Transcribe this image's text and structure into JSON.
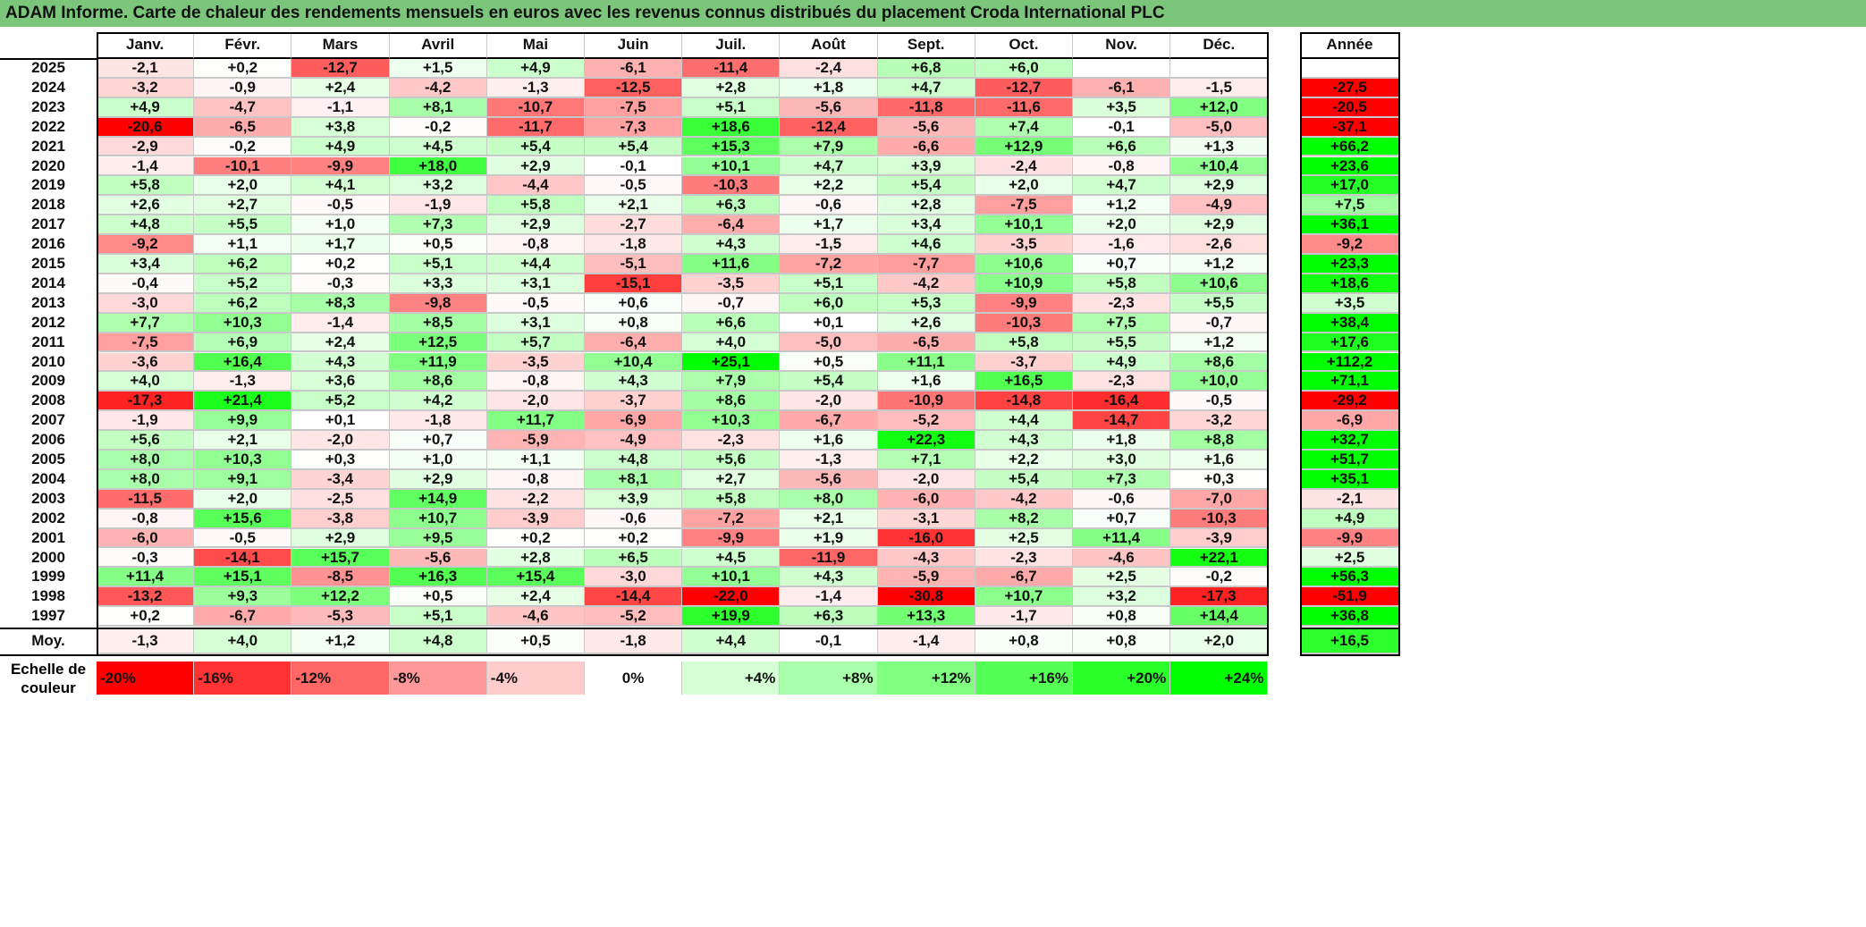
{
  "title": "ADAM Informe. Carte de chaleur des rendements mensuels en euros avec les revenus connus distribués du placement Croda International PLC",
  "chart_data": {
    "type": "heatmap",
    "title": "ADAM Informe. Carte de chaleur des rendements mensuels en euros avec les revenus connus distribués du placement Croda International PLC",
    "columns": [
      "Janv.",
      "Févr.",
      "Mars",
      "Avril",
      "Mai",
      "Juin",
      "Juil.",
      "Août",
      "Sept.",
      "Oct.",
      "Nov.",
      "Déc."
    ],
    "year_header": "Année",
    "rows": [
      {
        "year": "2025",
        "values": [
          "-2,1",
          "+0,2",
          "-12,7",
          "+1,5",
          "+4,9",
          "-6,1",
          "-11,4",
          "-2,4",
          "+6,8",
          "+6,0",
          "",
          ""
        ],
        "annual": ""
      },
      {
        "year": "2024",
        "values": [
          "-3,2",
          "-0,9",
          "+2,4",
          "-4,2",
          "-1,3",
          "-12,5",
          "+2,8",
          "+1,8",
          "+4,7",
          "-12,7",
          "-6,1",
          "-1,5"
        ],
        "annual": "-27,5"
      },
      {
        "year": "2023",
        "values": [
          "+4,9",
          "-4,7",
          "-1,1",
          "+8,1",
          "-10,7",
          "-7,5",
          "+5,1",
          "-5,6",
          "-11,8",
          "-11,6",
          "+3,5",
          "+12,0"
        ],
        "annual": "-20,5"
      },
      {
        "year": "2022",
        "values": [
          "-20,6",
          "-6,5",
          "+3,8",
          "-0,2",
          "-11,7",
          "-7,3",
          "+18,6",
          "-12,4",
          "-5,6",
          "+7,4",
          "-0,1",
          "-5,0"
        ],
        "annual": "-37,1"
      },
      {
        "year": "2021",
        "values": [
          "-2,9",
          "-0,2",
          "+4,9",
          "+4,5",
          "+5,4",
          "+5,4",
          "+15,3",
          "+7,9",
          "-6,6",
          "+12,9",
          "+6,6",
          "+1,3"
        ],
        "annual": "+66,2"
      },
      {
        "year": "2020",
        "values": [
          "-1,4",
          "-10,1",
          "-9,9",
          "+18,0",
          "+2,9",
          "-0,1",
          "+10,1",
          "+4,7",
          "+3,9",
          "-2,4",
          "-0,8",
          "+10,4"
        ],
        "annual": "+23,6"
      },
      {
        "year": "2019",
        "values": [
          "+5,8",
          "+2,0",
          "+4,1",
          "+3,2",
          "-4,4",
          "-0,5",
          "-10,3",
          "+2,2",
          "+5,4",
          "+2,0",
          "+4,7",
          "+2,9"
        ],
        "annual": "+17,0"
      },
      {
        "year": "2018",
        "values": [
          "+2,6",
          "+2,7",
          "-0,5",
          "-1,9",
          "+5,8",
          "+2,1",
          "+6,3",
          "-0,6",
          "+2,8",
          "-7,5",
          "+1,2",
          "-4,9"
        ],
        "annual": "+7,5"
      },
      {
        "year": "2017",
        "values": [
          "+4,8",
          "+5,5",
          "+1,0",
          "+7,3",
          "+2,9",
          "-2,7",
          "-6,4",
          "+1,7",
          "+3,4",
          "+10,1",
          "+2,0",
          "+2,9"
        ],
        "annual": "+36,1"
      },
      {
        "year": "2016",
        "values": [
          "-9,2",
          "+1,1",
          "+1,7",
          "+0,5",
          "-0,8",
          "-1,8",
          "+4,3",
          "-1,5",
          "+4,6",
          "-3,5",
          "-1,6",
          "-2,6"
        ],
        "annual": "-9,2"
      },
      {
        "year": "2015",
        "values": [
          "+3,4",
          "+6,2",
          "+0,2",
          "+5,1",
          "+4,4",
          "-5,1",
          "+11,6",
          "-7,2",
          "-7,7",
          "+10,6",
          "+0,7",
          "+1,2"
        ],
        "annual": "+23,3"
      },
      {
        "year": "2014",
        "values": [
          "-0,4",
          "+5,2",
          "-0,3",
          "+3,3",
          "+3,1",
          "-15,1",
          "-3,5",
          "+5,1",
          "-4,2",
          "+10,9",
          "+5,8",
          "+10,6"
        ],
        "annual": "+18,6"
      },
      {
        "year": "2013",
        "values": [
          "-3,0",
          "+6,2",
          "+8,3",
          "-9,8",
          "-0,5",
          "+0,6",
          "-0,7",
          "+6,0",
          "+5,3",
          "-9,9",
          "-2,3",
          "+5,5"
        ],
        "annual": "+3,5"
      },
      {
        "year": "2012",
        "values": [
          "+7,7",
          "+10,3",
          "-1,4",
          "+8,5",
          "+3,1",
          "+0,8",
          "+6,6",
          "+0,1",
          "+2,6",
          "-10,3",
          "+7,5",
          "-0,7"
        ],
        "annual": "+38,4"
      },
      {
        "year": "2011",
        "values": [
          "-7,5",
          "+6,9",
          "+2,4",
          "+12,5",
          "+5,7",
          "-6,4",
          "+4,0",
          "-5,0",
          "-6,5",
          "+5,8",
          "+5,5",
          "+1,2"
        ],
        "annual": "+17,6"
      },
      {
        "year": "2010",
        "values": [
          "-3,6",
          "+16,4",
          "+4,3",
          "+11,9",
          "-3,5",
          "+10,4",
          "+25,1",
          "+0,5",
          "+11,1",
          "-3,7",
          "+4,9",
          "+8,6"
        ],
        "annual": "+112,2"
      },
      {
        "year": "2009",
        "values": [
          "+4,0",
          "-1,3",
          "+3,6",
          "+8,6",
          "-0,8",
          "+4,3",
          "+7,9",
          "+5,4",
          "+1,6",
          "+16,5",
          "-2,3",
          "+10,0"
        ],
        "annual": "+71,1"
      },
      {
        "year": "2008",
        "values": [
          "-17,3",
          "+21,4",
          "+5,2",
          "+4,2",
          "-2,0",
          "-3,7",
          "+8,6",
          "-2,0",
          "-10,9",
          "-14,8",
          "-16,4",
          "-0,5"
        ],
        "annual": "-29,2"
      },
      {
        "year": "2007",
        "values": [
          "-1,9",
          "+9,9",
          "+0,1",
          "-1,8",
          "+11,7",
          "-6,9",
          "+10,3",
          "-6,7",
          "-5,2",
          "+4,4",
          "-14,7",
          "-3,2"
        ],
        "annual": "-6,9"
      },
      {
        "year": "2006",
        "values": [
          "+5,6",
          "+2,1",
          "-2,0",
          "+0,7",
          "-5,9",
          "-4,9",
          "-2,3",
          "+1,6",
          "+22,3",
          "+4,3",
          "+1,8",
          "+8,8"
        ],
        "annual": "+32,7"
      },
      {
        "year": "2005",
        "values": [
          "+8,0",
          "+10,3",
          "+0,3",
          "+1,0",
          "+1,1",
          "+4,8",
          "+5,6",
          "-1,3",
          "+7,1",
          "+2,2",
          "+3,0",
          "+1,6"
        ],
        "annual": "+51,7"
      },
      {
        "year": "2004",
        "values": [
          "+8,0",
          "+9,1",
          "-3,4",
          "+2,9",
          "-0,8",
          "+8,1",
          "+2,7",
          "-5,6",
          "-2,0",
          "+5,4",
          "+7,3",
          "+0,3"
        ],
        "annual": "+35,1"
      },
      {
        "year": "2003",
        "values": [
          "-11,5",
          "+2,0",
          "-2,5",
          "+14,9",
          "-2,2",
          "+3,9",
          "+5,8",
          "+8,0",
          "-6,0",
          "-4,2",
          "-0,6",
          "-7,0"
        ],
        "annual": "-2,1"
      },
      {
        "year": "2002",
        "values": [
          "-0,8",
          "+15,6",
          "-3,8",
          "+10,7",
          "-3,9",
          "-0,6",
          "-7,2",
          "+2,1",
          "-3,1",
          "+8,2",
          "+0,7",
          "-10,3"
        ],
        "annual": "+4,9"
      },
      {
        "year": "2001",
        "values": [
          "-6,0",
          "-0,5",
          "+2,9",
          "+9,5",
          "+0,2",
          "+0,2",
          "-9,9",
          "+1,9",
          "-16,0",
          "+2,5",
          "+11,4",
          "-3,9"
        ],
        "annual": "-9,9"
      },
      {
        "year": "2000",
        "values": [
          "-0,3",
          "-14,1",
          "+15,7",
          "-5,6",
          "+2,8",
          "+6,5",
          "+4,5",
          "-11,9",
          "-4,3",
          "-2,3",
          "-4,6",
          "+22,1"
        ],
        "annual": "+2,5"
      },
      {
        "year": "1999",
        "values": [
          "+11,4",
          "+15,1",
          "-8,5",
          "+16,3",
          "+15,4",
          "-3,0",
          "+10,1",
          "+4,3",
          "-5,9",
          "-6,7",
          "+2,5",
          "-0,2"
        ],
        "annual": "+56,3"
      },
      {
        "year": "1998",
        "values": [
          "-13,2",
          "+9,3",
          "+12,2",
          "+0,5",
          "+2,4",
          "-14,4",
          "-22,0",
          "-1,4",
          "-30,8",
          "+10,7",
          "+3,2",
          "-17,3"
        ],
        "annual": "-51,9"
      },
      {
        "year": "1997",
        "values": [
          "+0,2",
          "-6,7",
          "-5,3",
          "+5,1",
          "-4,6",
          "-5,2",
          "+19,9",
          "+6,3",
          "+13,3",
          "-1,7",
          "+0,8",
          "+14,4"
        ],
        "annual": "+36,8"
      }
    ],
    "average": {
      "label": "Moy.",
      "values": [
        "-1,3",
        "+4,0",
        "+1,2",
        "+4,8",
        "+0,5",
        "-1,8",
        "+4,4",
        "-0,1",
        "-1,4",
        "+0,8",
        "+0,8",
        "+2,0"
      ],
      "annual": "+16,5"
    },
    "scale": {
      "label": "Echelle de couleur",
      "steps": [
        "-20%",
        "-16%",
        "-12%",
        "-8%",
        "-4%",
        "0%",
        "+4%",
        "+8%",
        "+12%",
        "+16%",
        "+20%",
        "+24%"
      ]
    },
    "colors": {
      "negative": "#ff0000",
      "neutral": "#ffffff",
      "positive": "#00ff00",
      "title_bg": "#7cc67c"
    }
  }
}
